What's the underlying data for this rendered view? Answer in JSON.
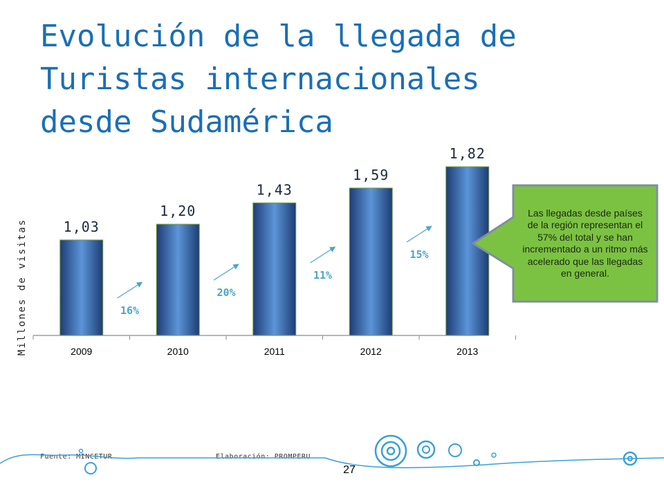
{
  "slide": {
    "title_lines": [
      "Evolución de la llegada de",
      "Turistas internacionales",
      "desde Sudamérica"
    ],
    "callout_text": "Las llegadas desde países de la región representan el 57% del total y se han incrementado a un ritmo más acelerado que las llegadas en general.",
    "source_note": "Fuente: MINCETUR",
    "made_by_note": "Elaboración: PROMPERU",
    "page_number": "27"
  },
  "colors": {
    "title": "#1a6fb5",
    "bar_light": "#5b95d9",
    "bar_dark": "#1d3d73",
    "bar_border": "#7fa040",
    "growth_label": "#4aa6c9",
    "callout_fill": "#7cc242",
    "callout_border": "#7f8f9f",
    "decor": "#3aa0d6"
  },
  "chart_data": {
    "type": "bar",
    "categories": [
      "2009",
      "2010",
      "2011",
      "2012",
      "2013"
    ],
    "values": [
      1.03,
      1.2,
      1.43,
      1.59,
      1.82
    ],
    "data_labels": [
      "1,03",
      "1,20",
      "1,43",
      "1,59",
      "1,82"
    ],
    "growth_labels": [
      "16%",
      "20%",
      "11%",
      "15%"
    ],
    "ylabel": "Millones de visitas",
    "ylim": [
      0,
      2
    ],
    "grid": false,
    "legend": "none"
  }
}
